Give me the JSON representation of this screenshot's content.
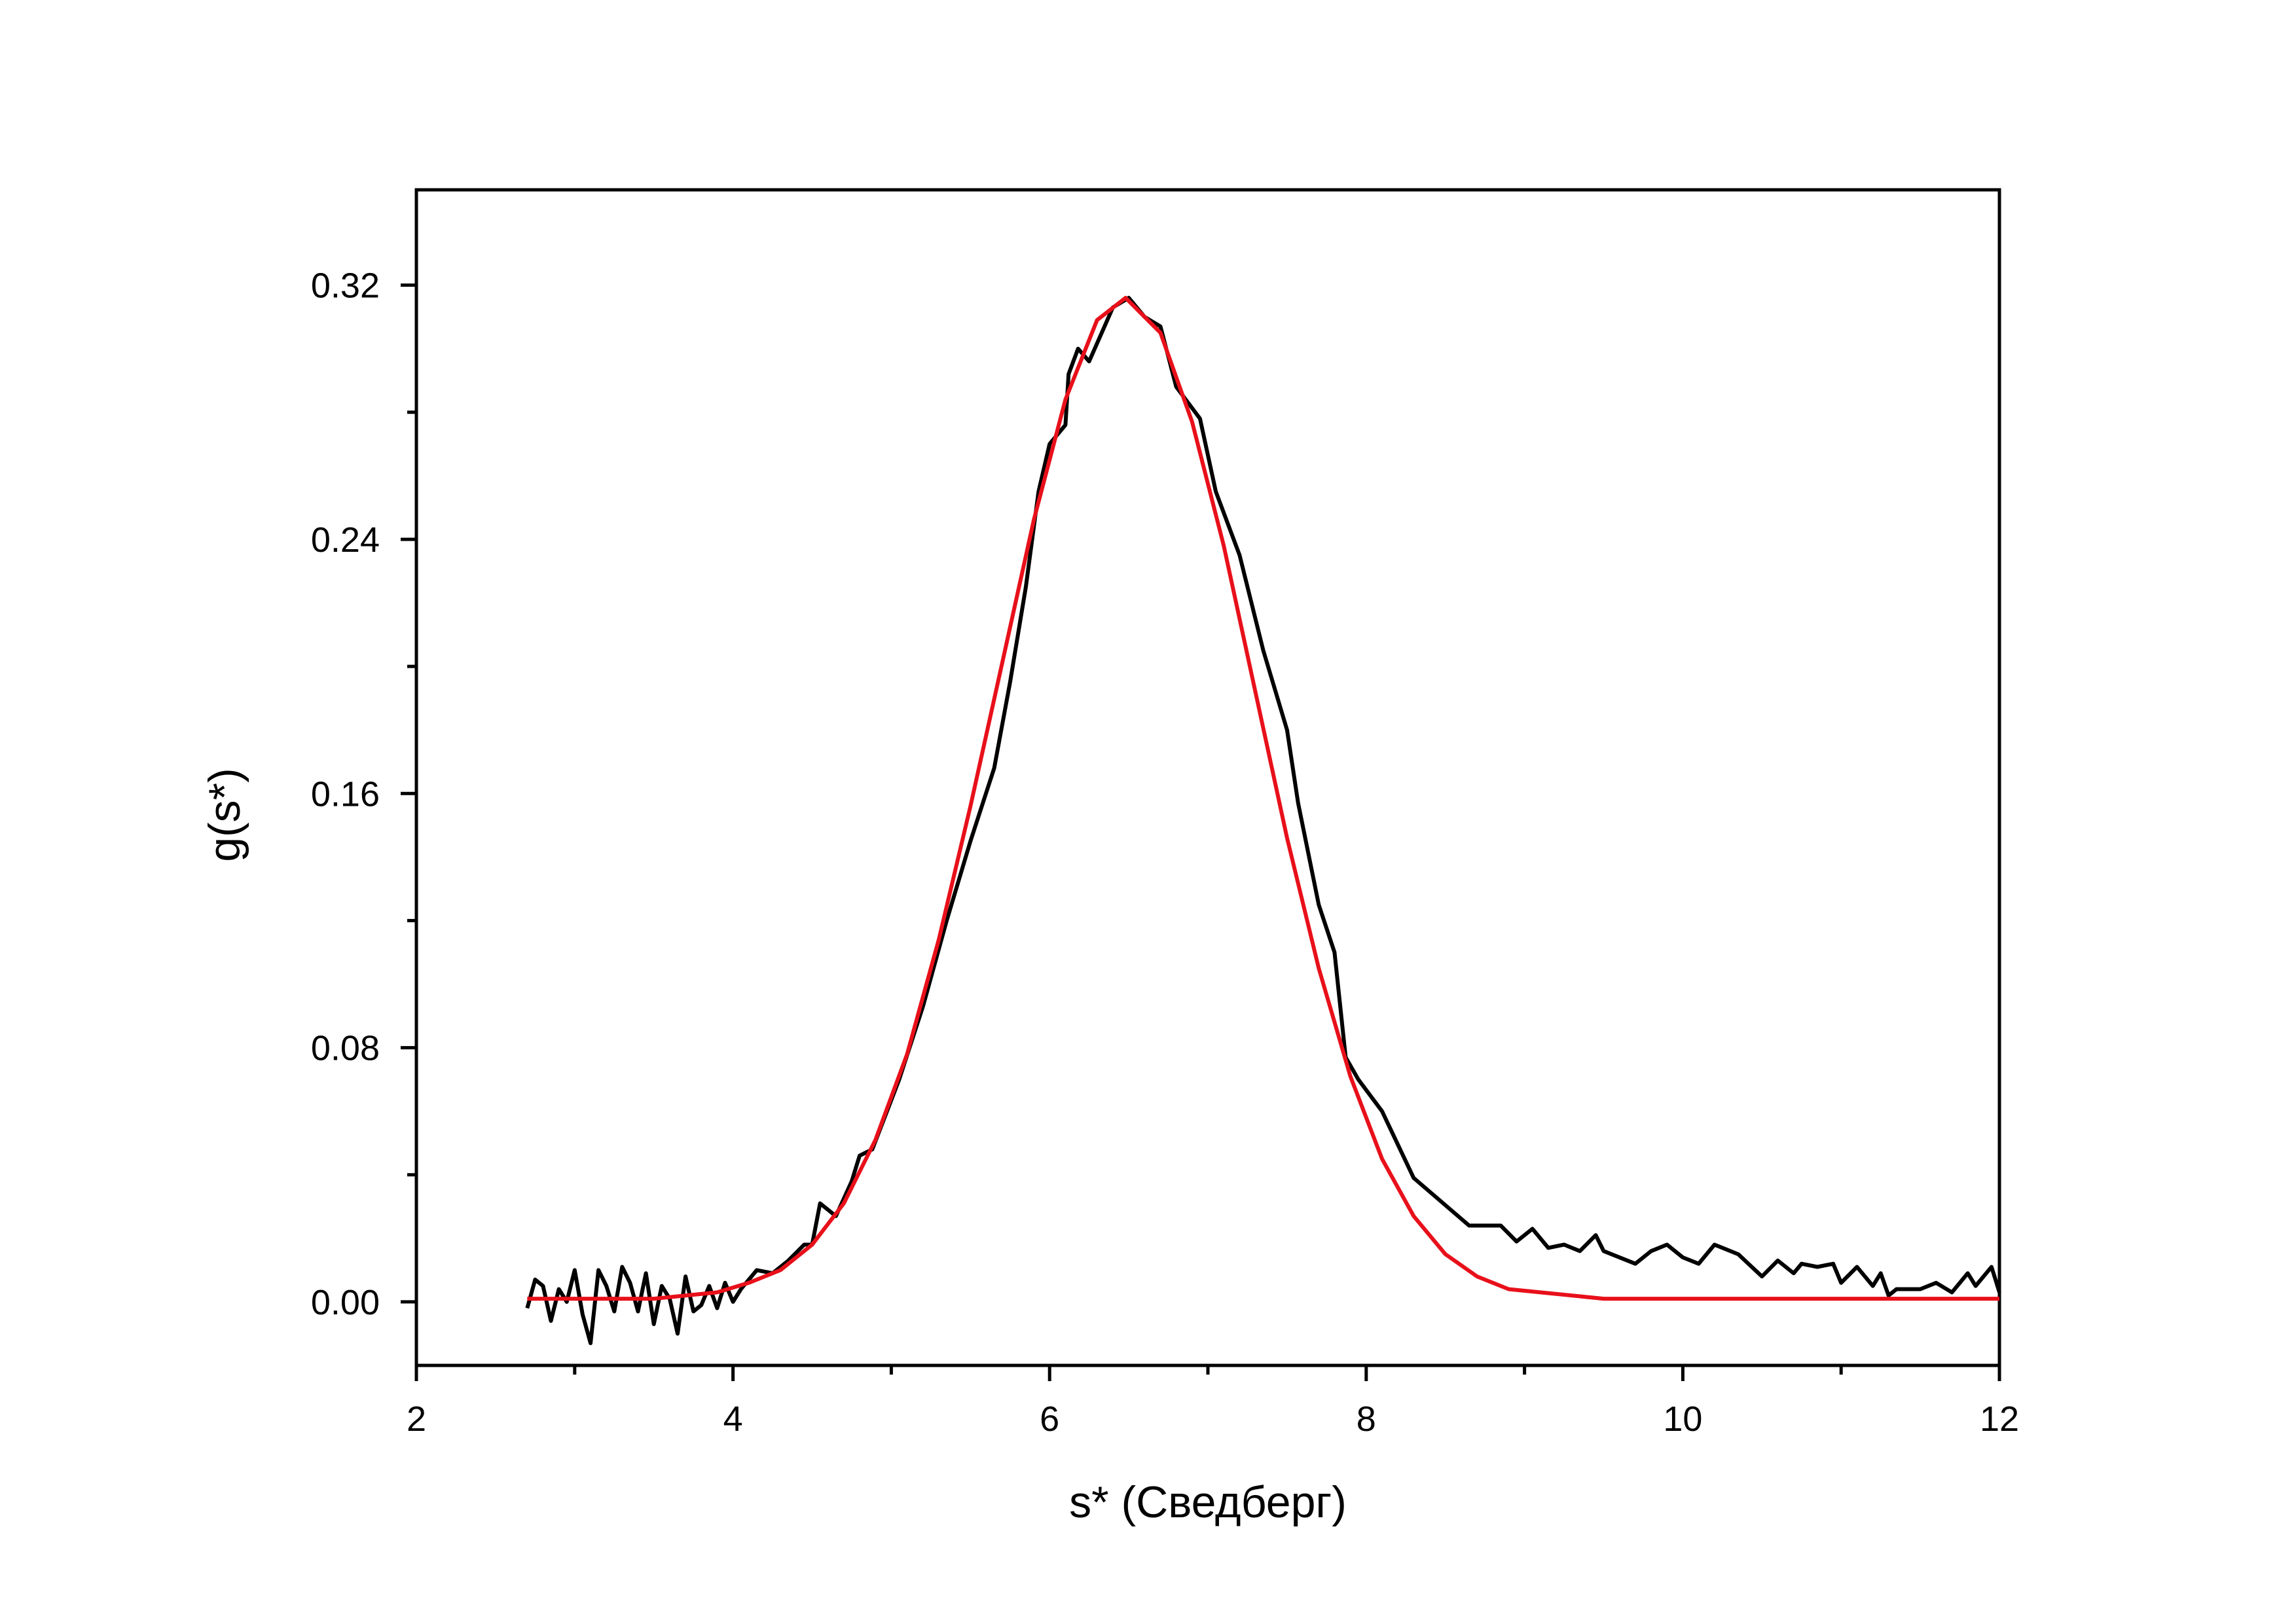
{
  "chart_data": {
    "type": "line",
    "xlabel": "s* (Сведберг)",
    "ylabel": "g(s*)",
    "xlim": [
      2,
      12
    ],
    "ylim": [
      -0.02,
      0.35
    ],
    "xticks": [
      2,
      4,
      6,
      8,
      10,
      12
    ],
    "xminorticks": [
      3,
      5,
      7,
      9,
      11
    ],
    "yticks": [
      {
        "value": 0,
        "label": "0.00"
      },
      0.08,
      0.16,
      0.24,
      0.32
    ],
    "yminorticks": [
      0.04,
      0.12,
      0.2,
      0.28
    ],
    "series": [
      {
        "color": "#000000",
        "x": [
          2.7,
          2.75,
          2.8,
          2.85,
          2.9,
          2.95,
          3.0,
          3.05,
          3.1,
          3.15,
          3.2,
          3.25,
          3.3,
          3.35,
          3.4,
          3.45,
          3.5,
          3.55,
          3.6,
          3.65,
          3.7,
          3.75,
          3.8,
          3.85,
          3.9,
          3.95,
          4.0,
          4.05,
          4.15,
          4.25,
          4.35,
          4.45,
          4.5,
          4.55,
          4.65,
          4.75,
          4.8,
          4.88,
          4.95,
          5.05,
          5.2,
          5.35,
          5.5,
          5.65,
          5.75,
          5.85,
          5.93,
          6.0,
          6.1,
          6.12,
          6.18,
          6.25,
          6.4,
          6.5,
          6.6,
          6.7,
          6.8,
          6.95,
          7.05,
          7.2,
          7.35,
          7.5,
          7.57,
          7.7,
          7.8,
          7.87,
          7.95,
          8.1,
          8.3,
          8.65,
          8.85,
          8.95,
          9.05,
          9.15,
          9.25,
          9.35,
          9.45,
          9.5,
          9.7,
          9.8,
          9.9,
          10.0,
          10.1,
          10.2,
          10.35,
          10.5,
          10.6,
          10.7,
          10.75,
          10.85,
          10.95,
          11.0,
          11.1,
          11.2,
          11.25,
          11.3,
          11.35,
          11.5,
          11.6,
          11.7,
          11.8,
          11.85,
          11.95,
          12.0
        ],
        "values": [
          -0.002,
          0.007,
          0.005,
          -0.006,
          0.004,
          0.0,
          0.01,
          -0.004,
          -0.013,
          0.01,
          0.005,
          -0.003,
          0.011,
          0.006,
          -0.003,
          0.009,
          -0.007,
          0.005,
          0.001,
          -0.01,
          0.008,
          -0.003,
          -0.001,
          0.005,
          -0.002,
          0.006,
          0.0,
          0.004,
          0.01,
          0.009,
          0.013,
          0.018,
          0.018,
          0.031,
          0.027,
          0.038,
          0.046,
          0.048,
          0.057,
          0.07,
          0.093,
          0.12,
          0.145,
          0.168,
          0.195,
          0.225,
          0.255,
          0.27,
          0.276,
          0.292,
          0.3,
          0.296,
          0.313,
          0.316,
          0.31,
          0.307,
          0.288,
          0.278,
          0.255,
          0.235,
          0.205,
          0.18,
          0.157,
          0.125,
          0.11,
          0.077,
          0.07,
          0.06,
          0.039,
          0.024,
          0.024,
          0.019,
          0.023,
          0.017,
          0.018,
          0.016,
          0.021,
          0.016,
          0.012,
          0.016,
          0.018,
          0.014,
          0.012,
          0.018,
          0.015,
          0.008,
          0.013,
          0.009,
          0.012,
          0.011,
          0.012,
          0.006,
          0.011,
          0.005,
          0.009,
          0.002,
          0.004,
          0.004,
          0.006,
          0.003,
          0.009,
          0.005,
          0.011,
          0.003
        ]
      },
      {
        "color": "#e8101a",
        "x": [
          2.7,
          3.1,
          3.5,
          3.9,
          4.1,
          4.3,
          4.5,
          4.7,
          4.9,
          5.1,
          5.3,
          5.5,
          5.7,
          5.9,
          6.1,
          6.3,
          6.48,
          6.7,
          6.9,
          7.1,
          7.3,
          7.5,
          7.7,
          7.9,
          8.1,
          8.3,
          8.5,
          8.7,
          8.9,
          9.1,
          9.5,
          10.0,
          11.0,
          12.0
        ],
        "values": [
          0.001,
          0.001,
          0.001,
          0.003,
          0.006,
          0.01,
          0.018,
          0.031,
          0.051,
          0.078,
          0.114,
          0.156,
          0.201,
          0.246,
          0.284,
          0.309,
          0.316,
          0.305,
          0.277,
          0.238,
          0.192,
          0.146,
          0.105,
          0.071,
          0.045,
          0.027,
          0.015,
          0.008,
          0.004,
          0.003,
          0.001,
          0.001,
          0.001,
          0.001
        ]
      }
    ]
  }
}
